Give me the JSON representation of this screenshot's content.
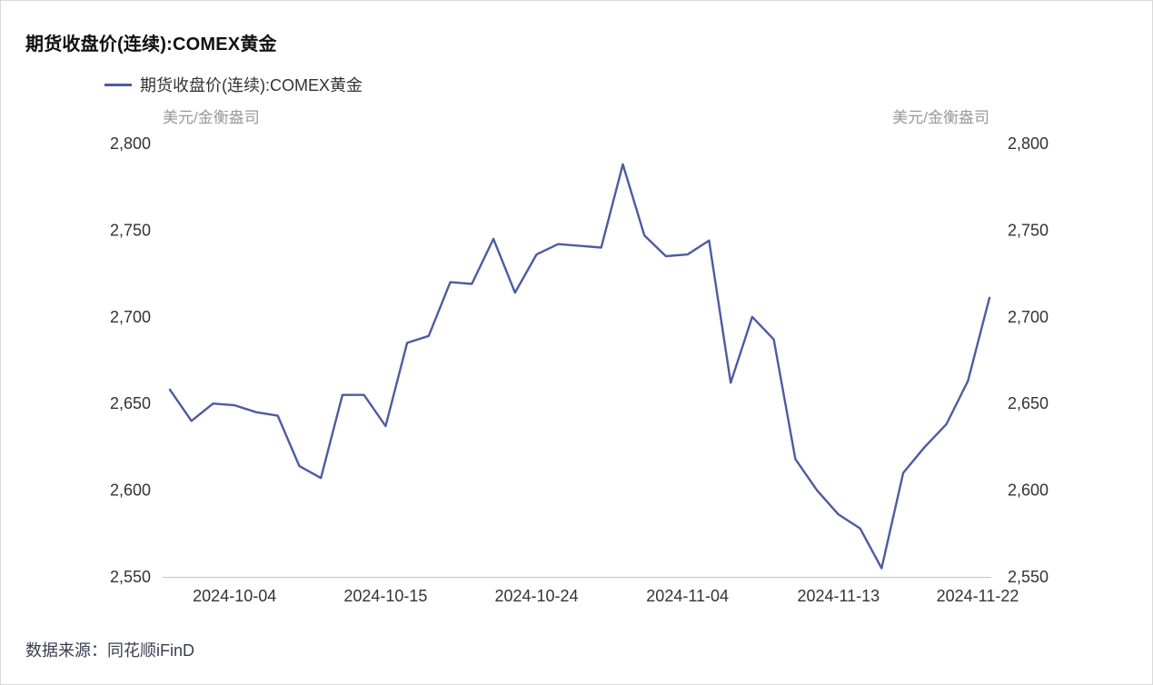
{
  "page": {
    "title": "期货收盘价(连续):COMEX黄金",
    "source": "数据来源：同花顺iFinD"
  },
  "chart_data": {
    "type": "line",
    "title": "期货收盘价(连续):COMEX黄金",
    "unit_left": "美元/金衡盎司",
    "unit_right": "美元/金衡盎司",
    "ylim": [
      2550,
      2800
    ],
    "y_ticks": [
      2550,
      2600,
      2650,
      2700,
      2750,
      2800
    ],
    "y_tick_labels": [
      "2,550",
      "2,600",
      "2,650",
      "2,700",
      "2,750",
      "2,800"
    ],
    "x_tick_labels": [
      "2024-10-04",
      "2024-10-15",
      "2024-10-24",
      "2024-11-04",
      "2024-11-13",
      "2024-11-22"
    ],
    "grid": false,
    "legend_position": "top-left",
    "series": [
      {
        "name": "期货收盘价(连续):COMEX黄金",
        "color": "#4d5ba1",
        "x": [
          "2024-10-01",
          "2024-10-02",
          "2024-10-03",
          "2024-10-04",
          "2024-10-07",
          "2024-10-08",
          "2024-10-09",
          "2024-10-10",
          "2024-10-11",
          "2024-10-14",
          "2024-10-15",
          "2024-10-16",
          "2024-10-17",
          "2024-10-18",
          "2024-10-21",
          "2024-10-22",
          "2024-10-23",
          "2024-10-24",
          "2024-10-25",
          "2024-10-28",
          "2024-10-29",
          "2024-10-30",
          "2024-10-31",
          "2024-11-01",
          "2024-11-04",
          "2024-11-05",
          "2024-11-06",
          "2024-11-07",
          "2024-11-08",
          "2024-11-11",
          "2024-11-12",
          "2024-11-13",
          "2024-11-14",
          "2024-11-15",
          "2024-11-18",
          "2024-11-19",
          "2024-11-20",
          "2024-11-21",
          "2024-11-22"
        ],
        "values": [
          2658,
          2640,
          2650,
          2649,
          2645,
          2643,
          2614,
          2607,
          2655,
          2655,
          2637,
          2685,
          2689,
          2720,
          2719,
          2745,
          2714,
          2736,
          2742,
          2741,
          2740,
          2788,
          2747,
          2735,
          2736,
          2744,
          2662,
          2700,
          2687,
          2618,
          2600,
          2586,
          2578,
          2555,
          2610,
          2625,
          2638,
          2663,
          2711
        ]
      }
    ]
  }
}
